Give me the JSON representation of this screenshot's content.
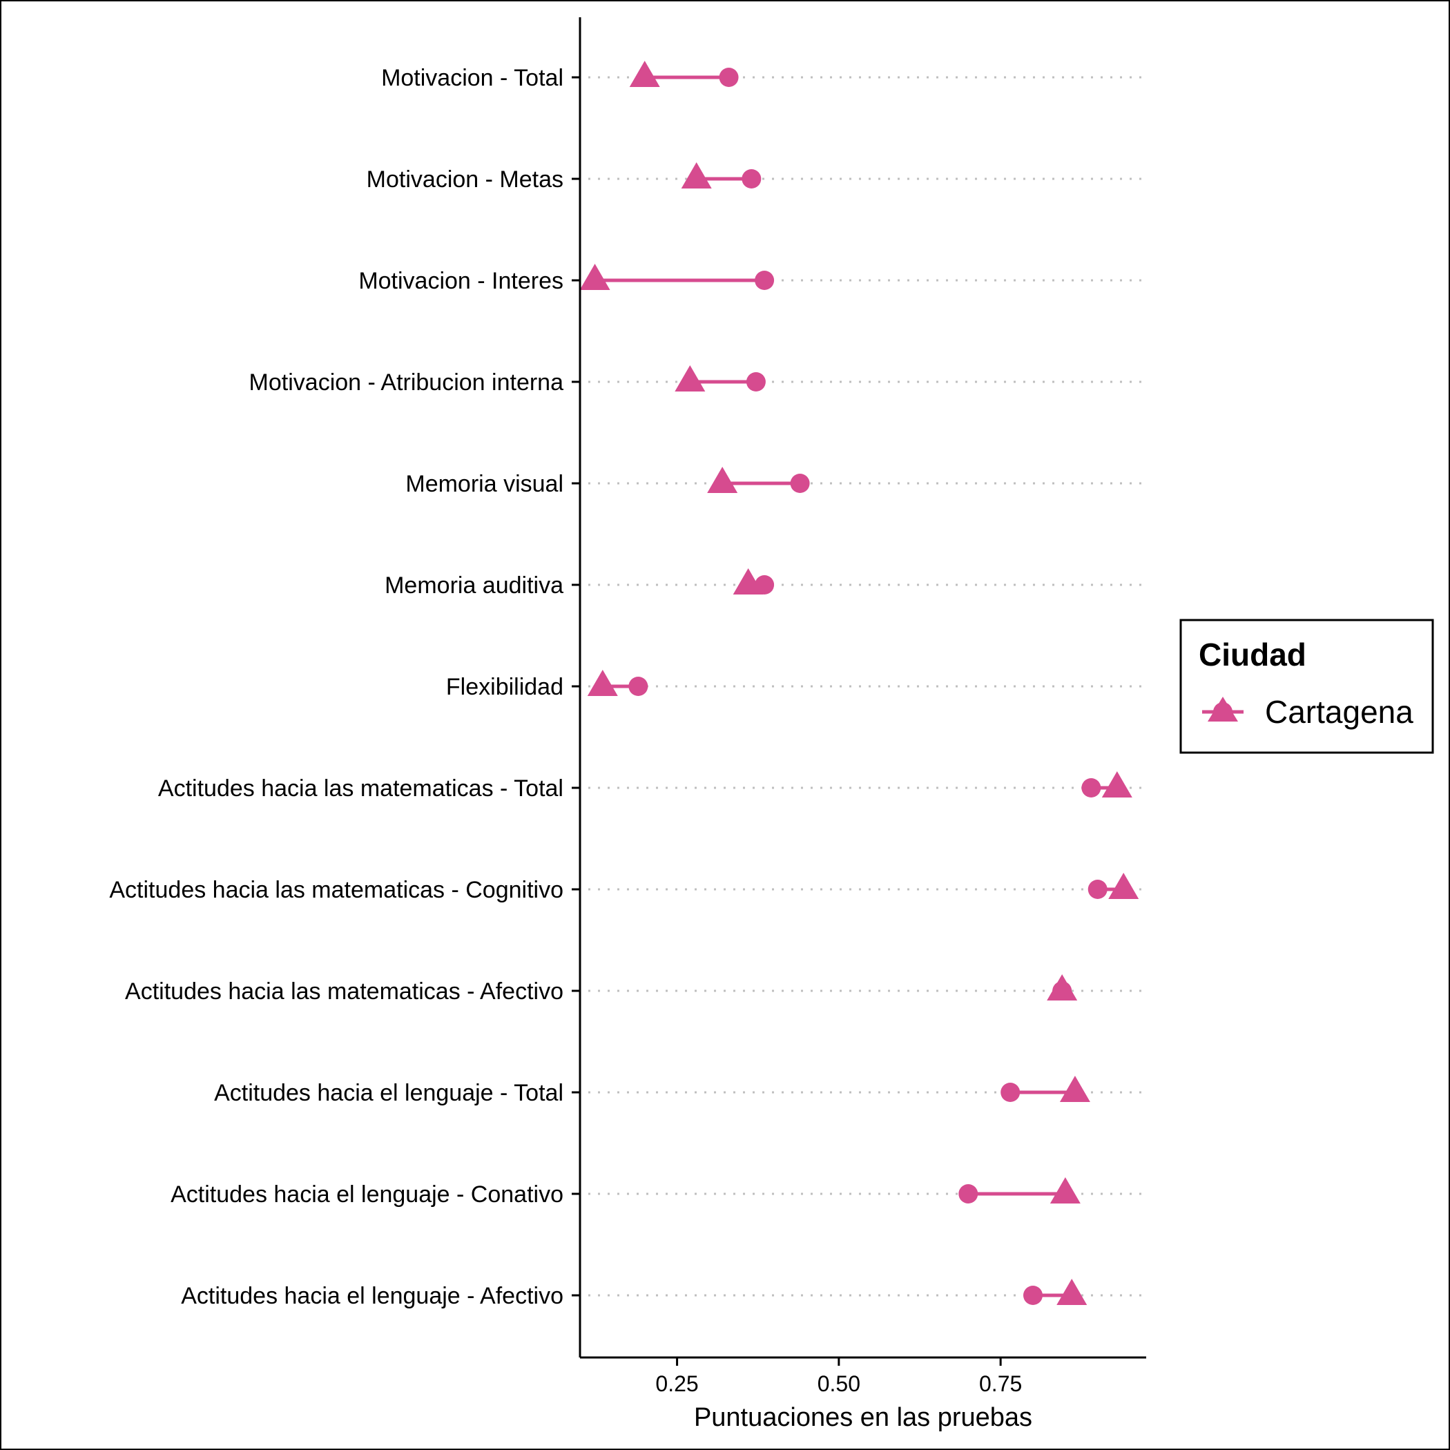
{
  "chart_data": {
    "type": "dumbbell",
    "categories": [
      "Motivacion - Total",
      "Motivacion - Metas",
      "Motivacion - Interes",
      "Motivacion - Atribucion interna",
      "Memoria visual",
      "Memoria auditiva",
      "Flexibilidad",
      "Actitudes hacia las matematicas - Total",
      "Actitudes hacia las matematicas - Cognitivo",
      "Actitudes hacia las matematicas - Afectivo",
      "Actitudes hacia el lenguaje - Total",
      "Actitudes hacia el lenguaje - Conativo",
      "Actitudes hacia el lenguaje - Afectivo"
    ],
    "series": [
      {
        "name": "Cartagena",
        "circle_values": [
          0.33,
          0.365,
          0.385,
          0.372,
          0.44,
          0.385,
          0.19,
          0.89,
          0.9,
          0.845,
          0.765,
          0.7,
          0.8
        ],
        "triangle_values": [
          0.2,
          0.28,
          0.123,
          0.27,
          0.32,
          0.36,
          0.135,
          0.93,
          0.94,
          0.845,
          0.865,
          0.85,
          0.86
        ],
        "color": "#d64b8f"
      }
    ],
    "xlabel": "Puntuaciones en las pruebas",
    "ylabel": "",
    "xticks": [
      0.25,
      0.5,
      0.75
    ],
    "xtick_labels": [
      "0.25",
      "0.50",
      "0.75"
    ],
    "xlim": [
      0.1,
      0.975
    ],
    "grid": "dotted horizontal lines per category",
    "legend": {
      "title": "Ciudad",
      "position": "right",
      "entries": [
        "Cartagena"
      ]
    }
  }
}
